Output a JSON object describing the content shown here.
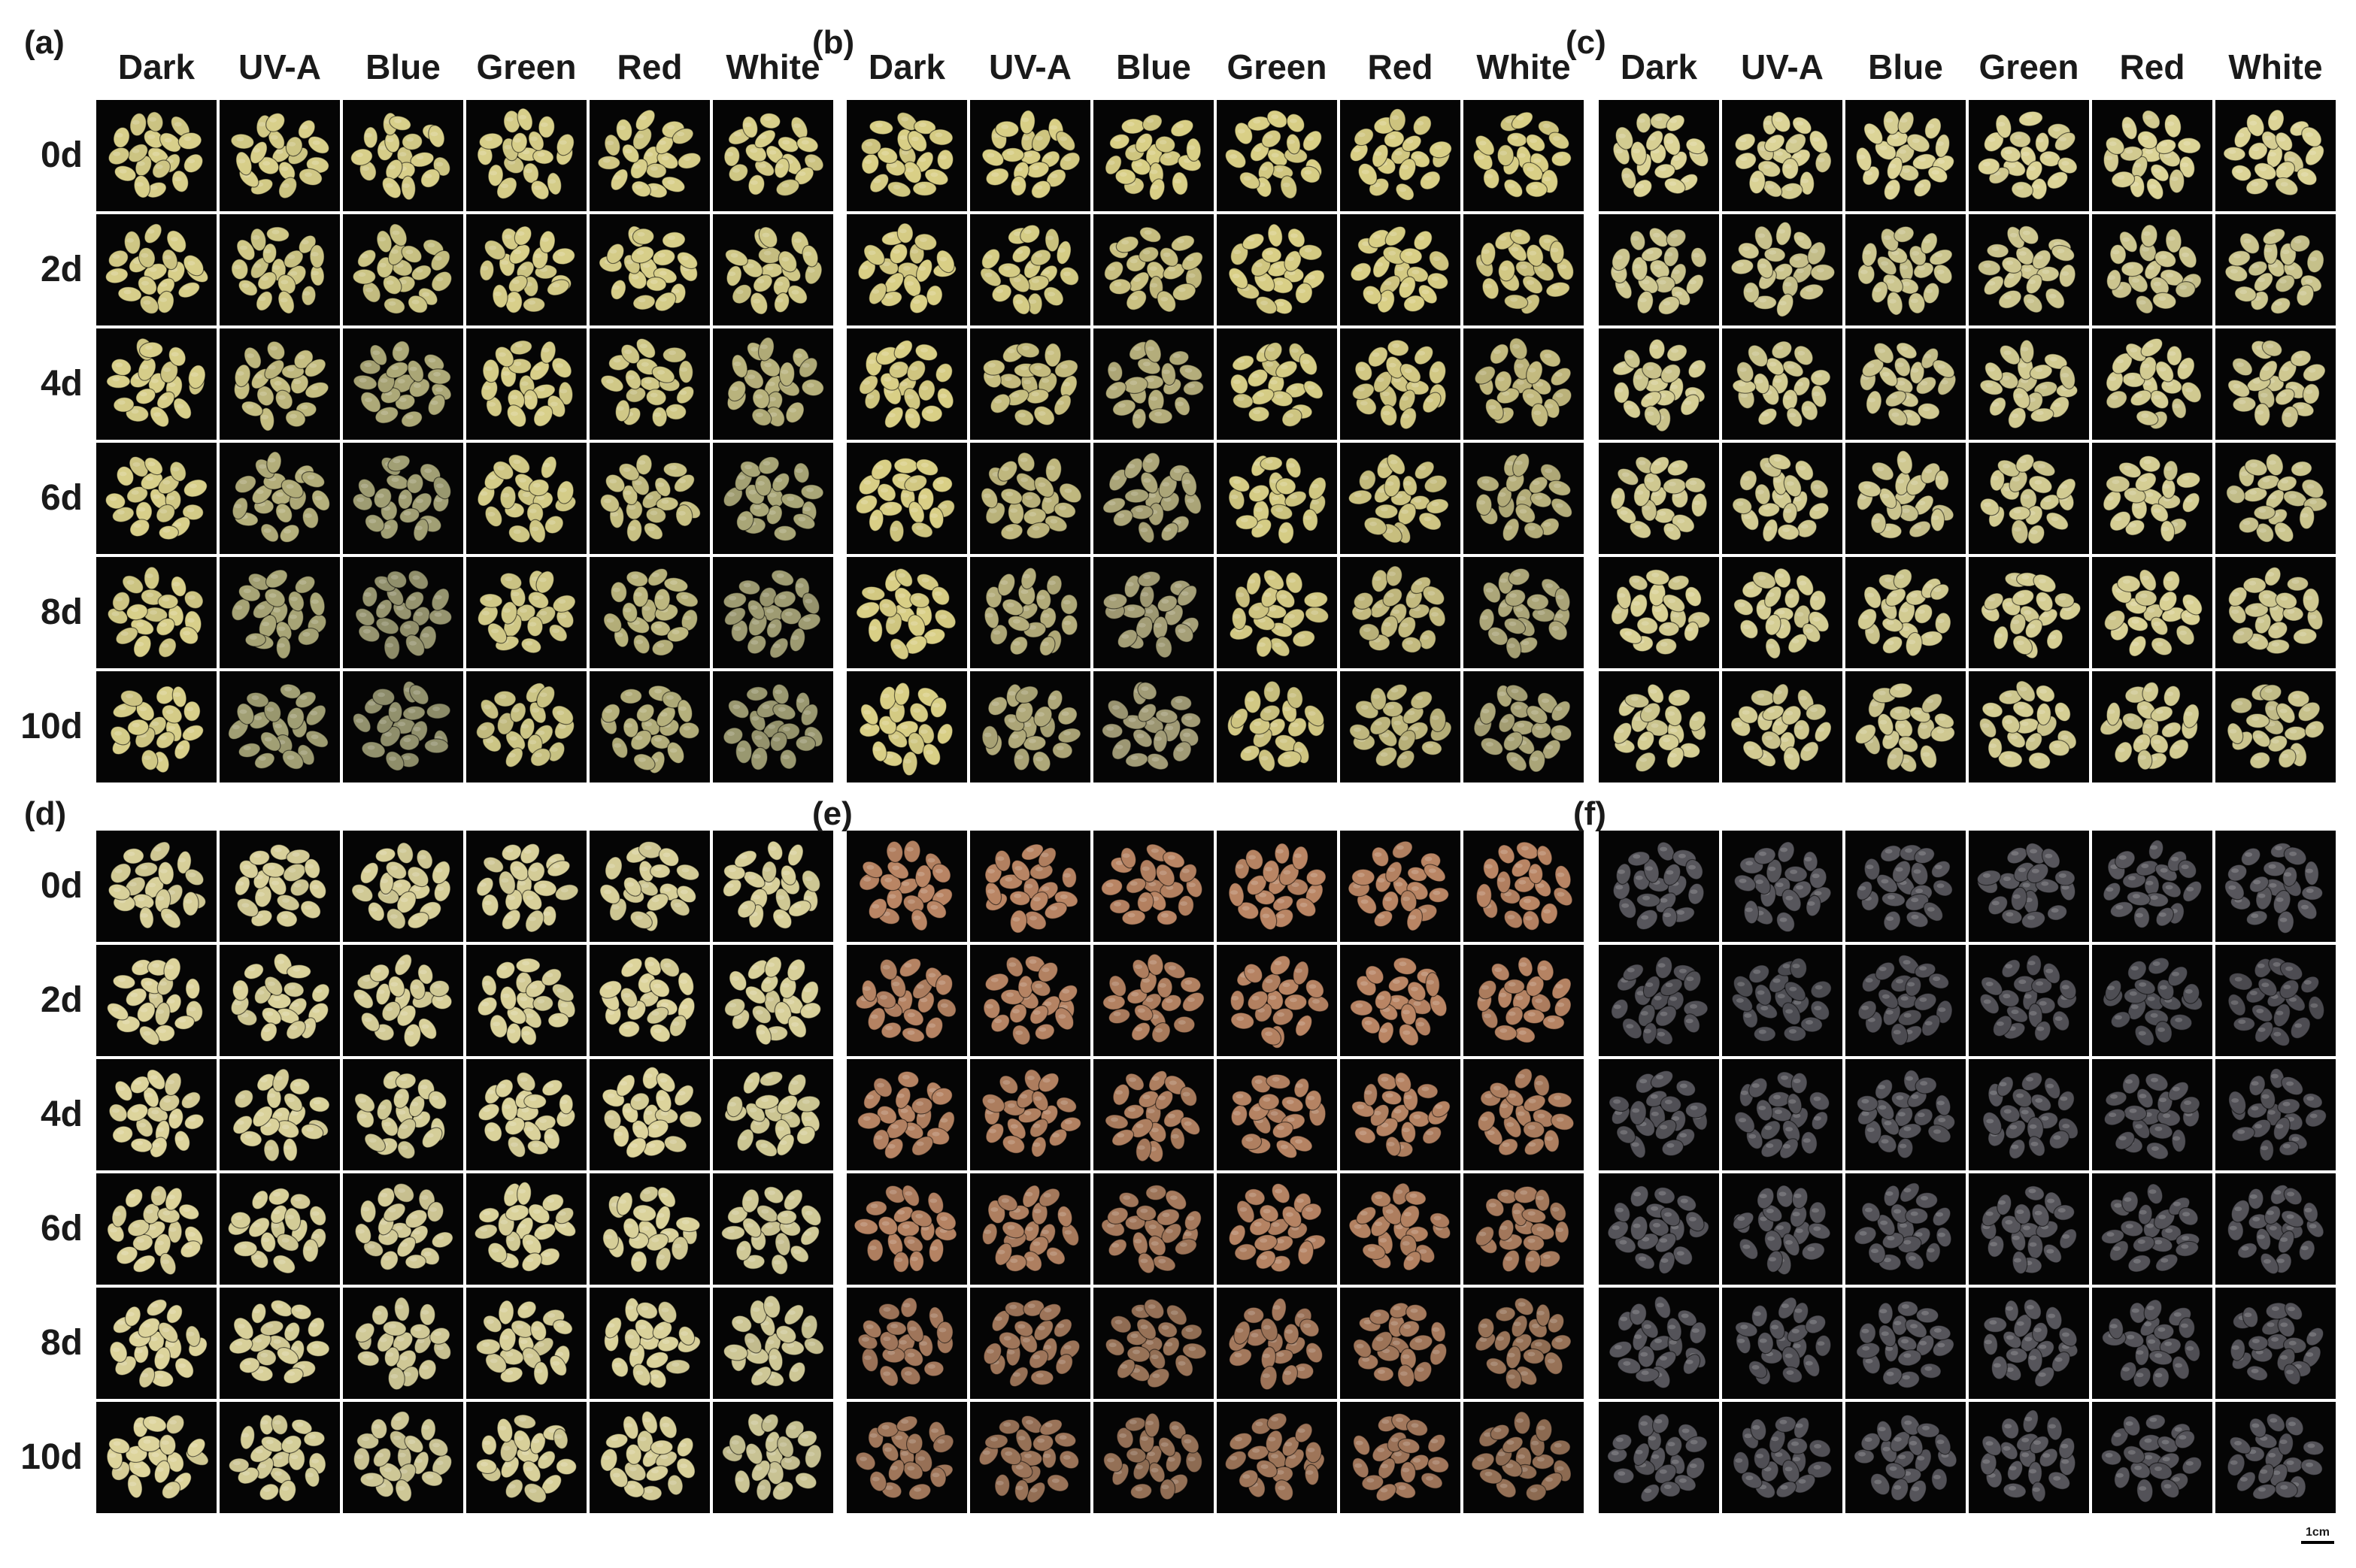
{
  "columns": [
    "Dark",
    "UV-A",
    "Blue",
    "Green",
    "Red",
    "White"
  ],
  "rows": [
    "0d",
    "2d",
    "4d",
    "6d",
    "8d",
    "10d"
  ],
  "panels": [
    {
      "label": "(a)",
      "description": "yellow-skin potato tubers under light treatments",
      "base_color": "#d8cf8a",
      "shift_color": "#8a8a6a",
      "shift": [
        [
          0,
          0,
          0,
          0,
          0,
          0
        ],
        [
          0,
          0.1,
          0.15,
          0,
          0,
          0.1
        ],
        [
          0,
          0.25,
          0.55,
          0,
          0.1,
          0.4
        ],
        [
          0,
          0.45,
          0.7,
          0.05,
          0.2,
          0.6
        ],
        [
          0,
          0.6,
          0.85,
          0.1,
          0.35,
          0.75
        ],
        [
          0,
          0.7,
          0.9,
          0.15,
          0.45,
          0.8
        ]
      ]
    },
    {
      "label": "(b)",
      "description": "yellow-skin potato tubers, cultivar 2",
      "base_color": "#d9cf86",
      "shift_color": "#8e8a70",
      "shift": [
        [
          0,
          0,
          0,
          0,
          0,
          0
        ],
        [
          0,
          0.05,
          0.2,
          0,
          0,
          0.1
        ],
        [
          0,
          0.2,
          0.5,
          0.05,
          0.1,
          0.3
        ],
        [
          0,
          0.35,
          0.6,
          0.05,
          0.15,
          0.45
        ],
        [
          0,
          0.5,
          0.7,
          0.1,
          0.3,
          0.6
        ],
        [
          0,
          0.55,
          0.75,
          0.1,
          0.35,
          0.6
        ]
      ]
    },
    {
      "label": "(c)",
      "description": "yellow-skin potato tubers, cultivar 3",
      "base_color": "#dcd497",
      "shift_color": "#9a9a78",
      "shift": [
        [
          0,
          0,
          0,
          0,
          0,
          0
        ],
        [
          0.2,
          0.2,
          0.25,
          0.2,
          0.2,
          0.25
        ],
        [
          0.1,
          0.15,
          0.2,
          0.15,
          0.1,
          0.2
        ],
        [
          0.15,
          0.15,
          0.2,
          0.15,
          0.1,
          0.25
        ],
        [
          0.05,
          0.1,
          0.15,
          0.1,
          0.05,
          0.2
        ],
        [
          0.1,
          0.15,
          0.2,
          0.1,
          0.15,
          0.25
        ]
      ]
    },
    {
      "label": "(d)",
      "description": "light-yellow potato tubers, cultivar 4",
      "base_color": "#ddd49c",
      "shift_color": "#aaa988",
      "shift": [
        [
          0.1,
          0.1,
          0.1,
          0.1,
          0.1,
          0.1
        ],
        [
          0,
          0.05,
          0.1,
          0.05,
          0,
          0.1
        ],
        [
          0,
          0.05,
          0.15,
          0.05,
          0,
          0.15
        ],
        [
          0,
          0.1,
          0.2,
          0.05,
          0.05,
          0.25
        ],
        [
          0,
          0.1,
          0.25,
          0.1,
          0.05,
          0.3
        ],
        [
          0,
          0.15,
          0.3,
          0.1,
          0.1,
          0.35
        ]
      ]
    },
    {
      "label": "(e)",
      "description": "red-skin potato tubers",
      "base_color": "#b98564",
      "shift_color": "#6e5a48",
      "shift": [
        [
          0,
          0,
          0,
          0,
          0,
          0
        ],
        [
          0.05,
          0.05,
          0.1,
          0,
          0,
          0.05
        ],
        [
          0.05,
          0.1,
          0.15,
          0.05,
          0.05,
          0.15
        ],
        [
          0.05,
          0.15,
          0.25,
          0.05,
          0.1,
          0.25
        ],
        [
          0.3,
          0.35,
          0.45,
          0.3,
          0.25,
          0.45
        ],
        [
          0.35,
          0.4,
          0.5,
          0.35,
          0.3,
          0.5
        ]
      ]
    },
    {
      "label": "(f)",
      "description": "purple-skin potato tubers",
      "base_color": "#57565c",
      "shift_color": "#3a3a40",
      "shift": [
        [
          0,
          0,
          0,
          0,
          0,
          0
        ],
        [
          0.2,
          0.3,
          0.25,
          0.2,
          0.3,
          0.35
        ],
        [
          0.1,
          0.15,
          0.1,
          0.1,
          0.15,
          0.2
        ],
        [
          0.05,
          0.05,
          0.1,
          0.05,
          0.1,
          0.1
        ],
        [
          0.05,
          0.1,
          0.05,
          0.05,
          0.1,
          0.15
        ],
        [
          0.05,
          0.1,
          0.05,
          0.05,
          0.1,
          0.1
        ]
      ]
    }
  ],
  "scale_bar": {
    "label": "1cm"
  }
}
